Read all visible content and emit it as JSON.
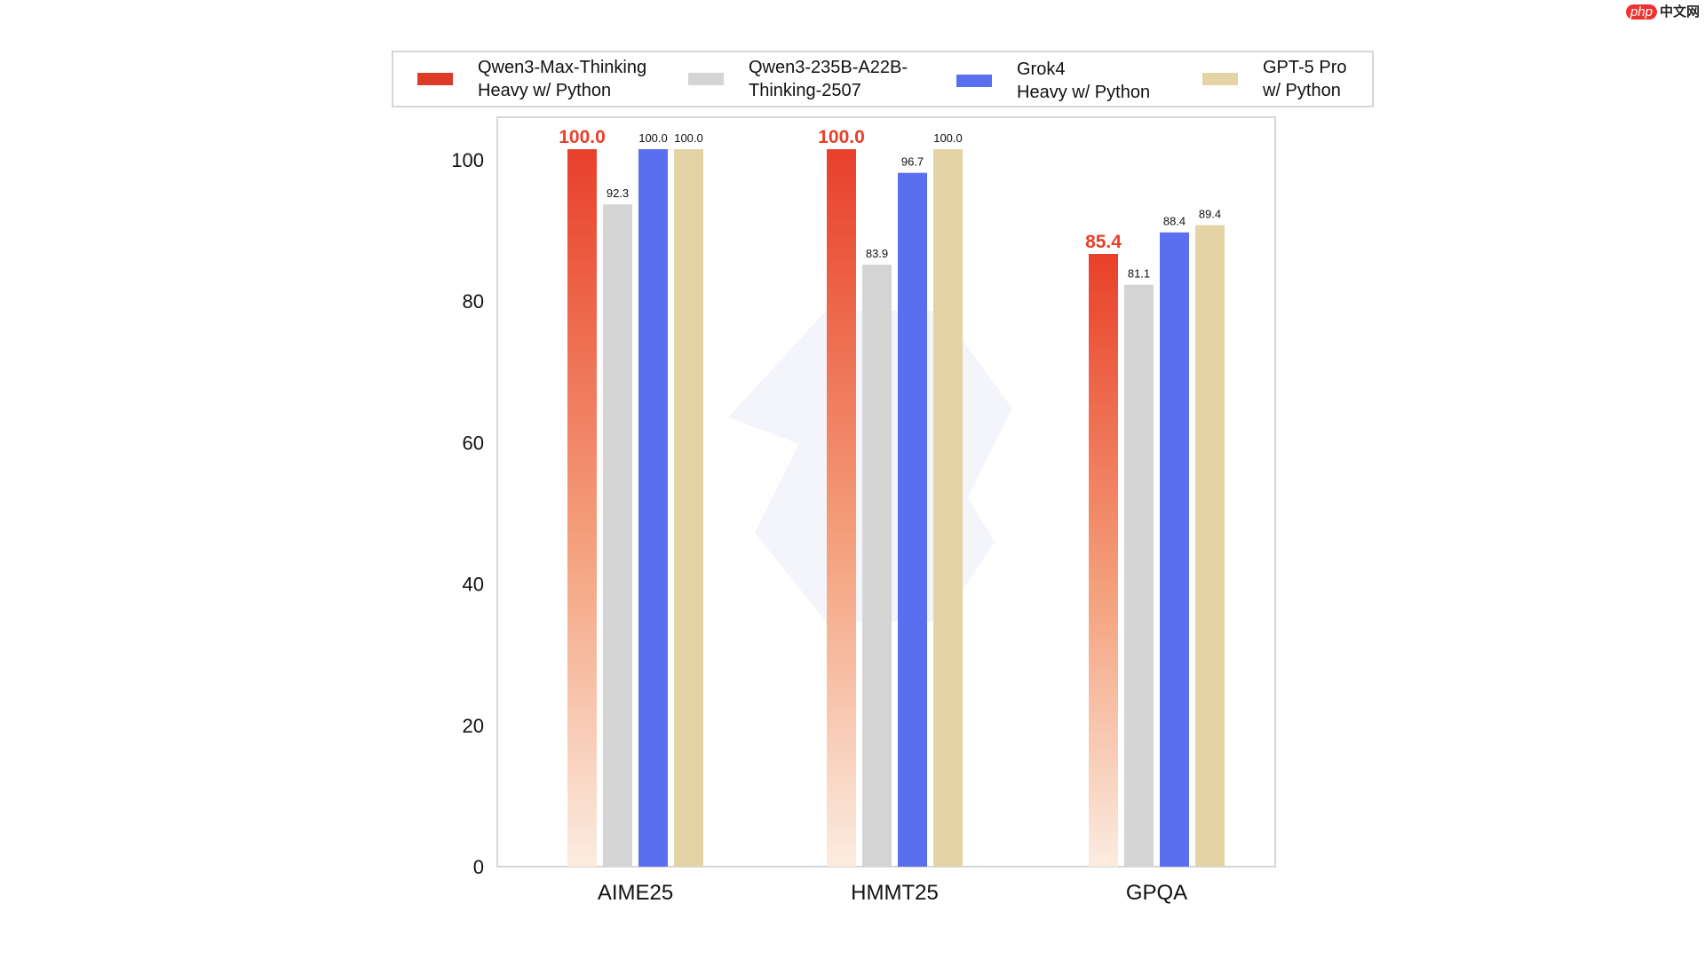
{
  "watermark": {
    "brand": "php",
    "site": "中文网"
  },
  "chart_data": {
    "type": "bar",
    "title": "",
    "xlabel": "",
    "ylabel": "",
    "ylim": [
      0,
      100
    ],
    "yticks": [
      0,
      20,
      40,
      60,
      80,
      100
    ],
    "grid": false,
    "legend_position": "top",
    "categories": [
      "AIME25",
      "HMMT25",
      "GPQA"
    ],
    "series": [
      {
        "name": "Qwen3-Max-Thinking\nHeavy w/ Python",
        "color": "#e8402a",
        "values": [
          100.0,
          100.0,
          85.4
        ],
        "labels": [
          "100.0",
          "100.0",
          "85.4"
        ]
      },
      {
        "name": "Qwen3-235B-A22B-\nThinking-2507",
        "color": "#d4d4d4",
        "values": [
          92.3,
          83.9,
          81.1
        ],
        "labels": [
          "92.3",
          "83.9",
          "81.1"
        ]
      },
      {
        "name": "Grok4\nHeavy w/ Python",
        "color": "#5a6ef0",
        "values": [
          100.0,
          96.7,
          88.4
        ],
        "labels": [
          "100.0",
          "96.7",
          "88.4"
        ]
      },
      {
        "name": "GPT-5 Pro\nw/ Python",
        "color": "#e3d3a5",
        "values": [
          100.0,
          100.0,
          89.4
        ],
        "labels": [
          "100.0",
          "100.0",
          "89.4"
        ]
      }
    ]
  }
}
